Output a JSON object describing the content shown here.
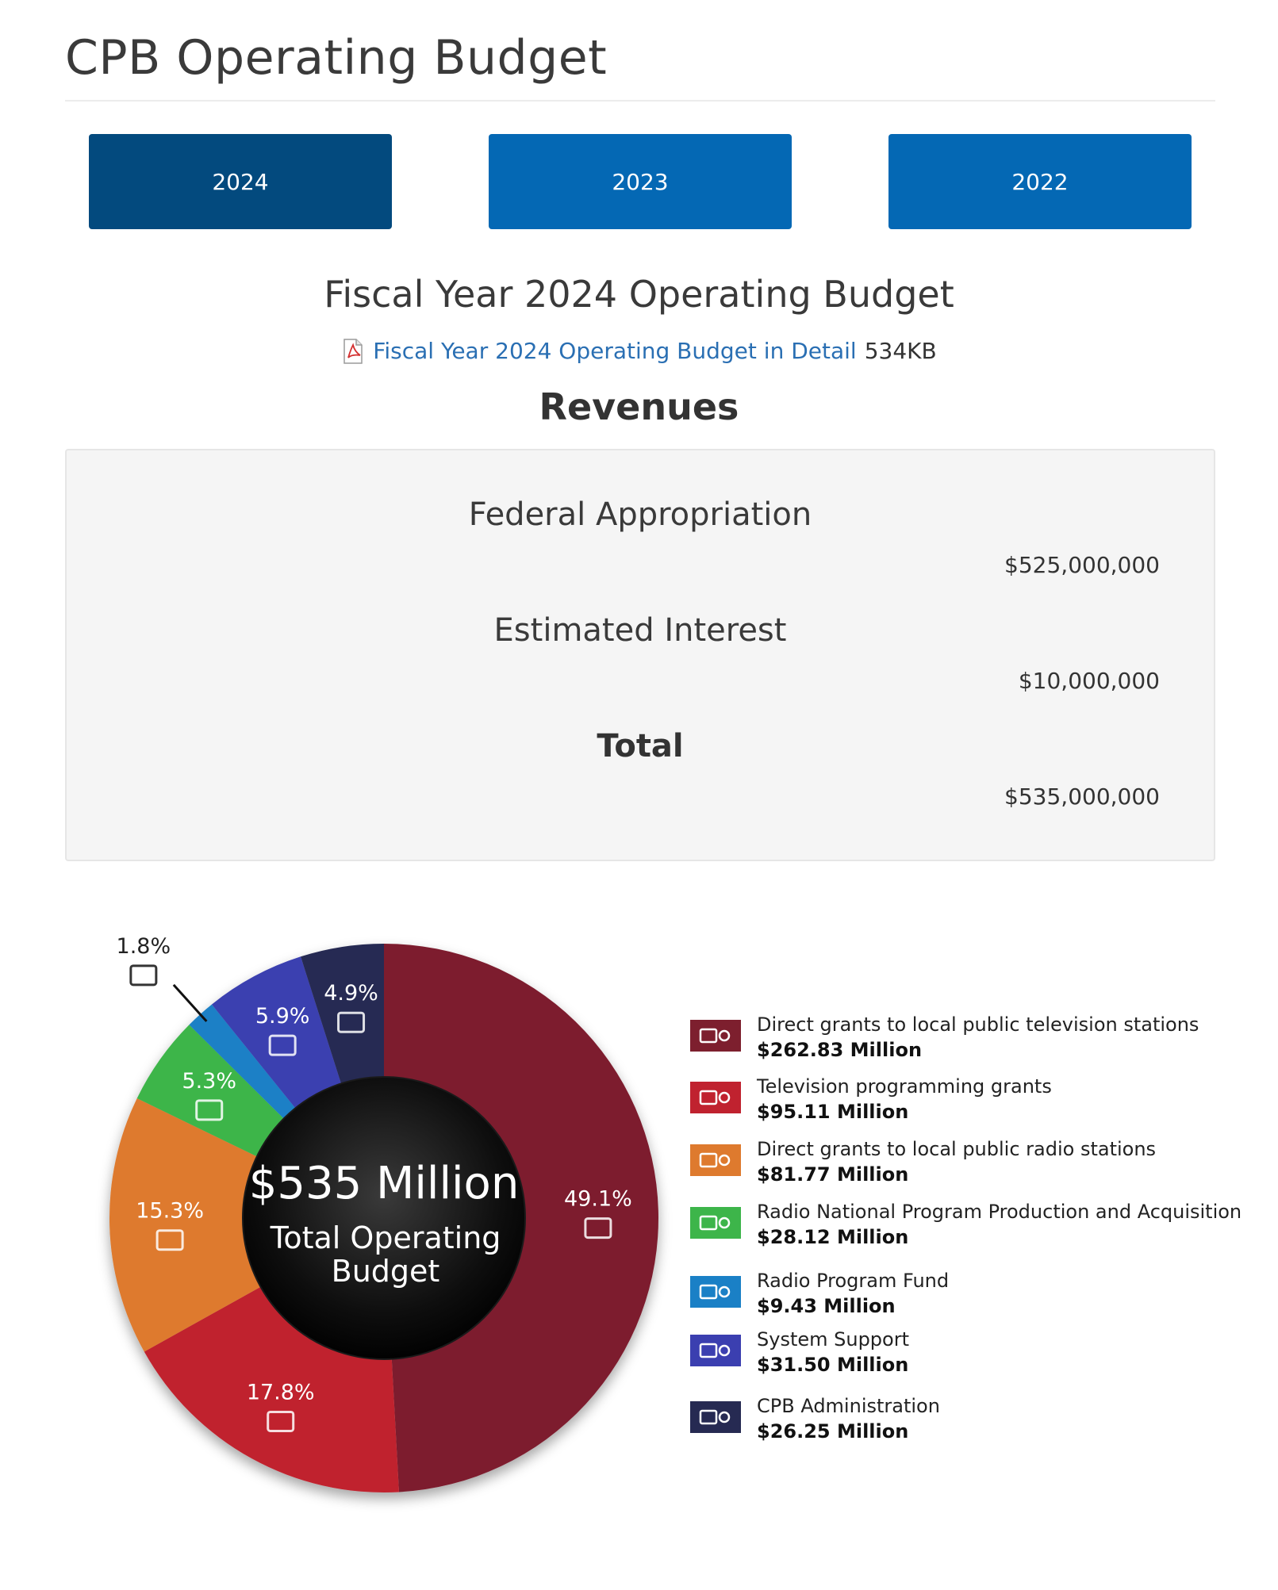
{
  "header": {
    "title": "CPB Operating Budget"
  },
  "years": [
    {
      "label": "2024",
      "active": true
    },
    {
      "label": "2023",
      "active": false
    },
    {
      "label": "2022",
      "active": false
    }
  ],
  "fiscal": {
    "heading": "Fiscal Year 2024 Operating Budget",
    "detail_link": "Fiscal Year 2024 Operating Budget in Detail",
    "detail_size": "534KB",
    "pdf_icon": "pdf-file-icon"
  },
  "revenues": {
    "heading": "Revenues",
    "rows": [
      {
        "label": "Federal Appropriation",
        "amount": "$525,000,000"
      },
      {
        "label": "Estimated Interest",
        "amount": "$10,000,000"
      },
      {
        "label": "Total",
        "amount": "$535,000,000"
      }
    ]
  },
  "chart_data": {
    "type": "pie",
    "title": "",
    "center_value": "$535 Million",
    "center_label_line1": "Total Operating",
    "center_label_line2": "Budget",
    "slices": [
      {
        "name": "Direct grants to local public television stations",
        "value_label": "$262.83 Million",
        "value": 262.83,
        "percent": 49.1,
        "percent_label": "49.1%",
        "color": "#7d1f2e",
        "icon": "tv-antenna-icon"
      },
      {
        "name": "Television programming grants",
        "value_label": "$95.11 Million",
        "value": 95.11,
        "percent": 17.8,
        "percent_label": "17.8%",
        "color": "#c0222f",
        "icon": "tv-camera-icon"
      },
      {
        "name": "Direct grants to local public radio stations",
        "value_label": "$81.77 Million",
        "value": 81.77,
        "percent": 15.3,
        "percent_label": "15.3%",
        "color": "#de7a2e",
        "icon": "radio-antenna-icon"
      },
      {
        "name": "Radio National Program Production and Acquisition",
        "value_label": "$28.12 Million",
        "value": 28.12,
        "percent": 5.3,
        "percent_label": "5.3%",
        "color": "#3db54a",
        "icon": "microphone-icon"
      },
      {
        "name": "Radio Program Fund",
        "value_label": "$9.43 Million",
        "value": 9.43,
        "percent": 1.8,
        "percent_label": "1.8%",
        "color": "#1a80c6",
        "icon": "radio-icon"
      },
      {
        "name": "System Support",
        "value_label": "$31.50 Million",
        "value": 31.5,
        "percent": 5.9,
        "percent_label": "5.9%",
        "color": "#3b3fb0",
        "icon": "globe-icon"
      },
      {
        "name": "CPB Administration",
        "value_label": "$26.25 Million",
        "value": 26.25,
        "percent": 4.9,
        "percent_label": "4.9%",
        "color": "#262a52",
        "icon": "cpb-logo-icon"
      }
    ]
  }
}
